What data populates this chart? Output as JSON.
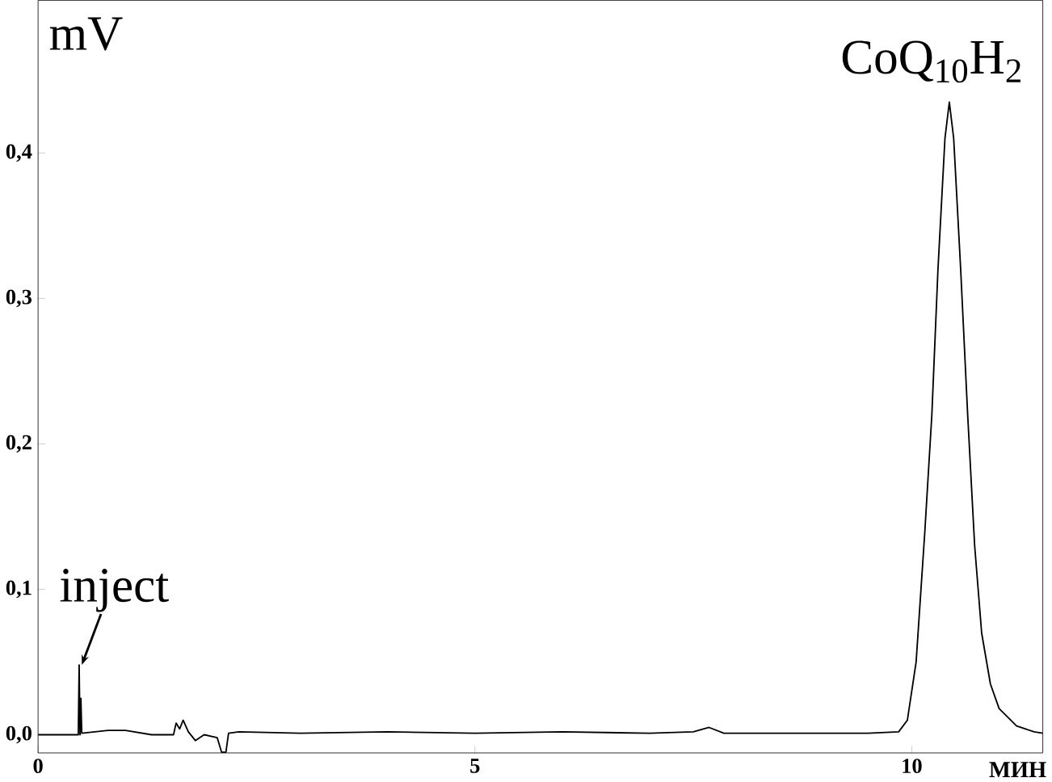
{
  "chart_data": {
    "type": "line",
    "xlabel": "МИН",
    "ylabel": "mV",
    "x": [
      0,
      0.46,
      0.47,
      0.48,
      0.49,
      0.5,
      0.8,
      1.0,
      1.3,
      1.55,
      1.58,
      1.62,
      1.66,
      1.72,
      1.8,
      1.9,
      2.05,
      2.1,
      2.15,
      2.18,
      2.3,
      3,
      4,
      5,
      6,
      7,
      7.5,
      7.68,
      7.85,
      8.5,
      9.5,
      9.85,
      9.95,
      10.05,
      10.15,
      10.23,
      10.3,
      10.38,
      10.43,
      10.48,
      10.56,
      10.64,
      10.72,
      10.8,
      10.9,
      11.0,
      11.2,
      11.4,
      11.5
    ],
    "series": [
      {
        "color": "#000000",
        "values": [
          0,
          0,
          0.048,
          0,
          0.025,
          0.001,
          0.003,
          0.003,
          0,
          0,
          0.008,
          0.004,
          0.01,
          0.002,
          -0.004,
          0,
          -0.002,
          -0.012,
          -0.012,
          0.001,
          0.002,
          0.001,
          0.002,
          0.001,
          0.002,
          0.001,
          0.002,
          0.005,
          0.001,
          0.001,
          0.001,
          0.002,
          0.01,
          0.05,
          0.14,
          0.22,
          0.32,
          0.41,
          0.435,
          0.41,
          0.32,
          0.22,
          0.13,
          0.07,
          0.035,
          0.018,
          0.006,
          0.002,
          0.001
        ]
      }
    ],
    "xlim": [
      0,
      11.5
    ],
    "ylim": [
      -0.0125,
      0.505
    ],
    "xticks": [
      0,
      5,
      10
    ],
    "yticks": [
      {
        "value": 0,
        "label": "0,0"
      },
      {
        "value": 0.1,
        "label": "0,1"
      },
      {
        "value": 0.2,
        "label": "0,2"
      },
      {
        "value": 0.3,
        "label": "0,3"
      },
      {
        "value": 0.4,
        "label": "0,4"
      }
    ],
    "annotations": [
      {
        "text": "inject",
        "x": 0.47,
        "y": 0.048
      },
      {
        "text": "CoQ$_{10}$H$_{2}$",
        "x": 10.43,
        "y": 0.435
      }
    ]
  }
}
